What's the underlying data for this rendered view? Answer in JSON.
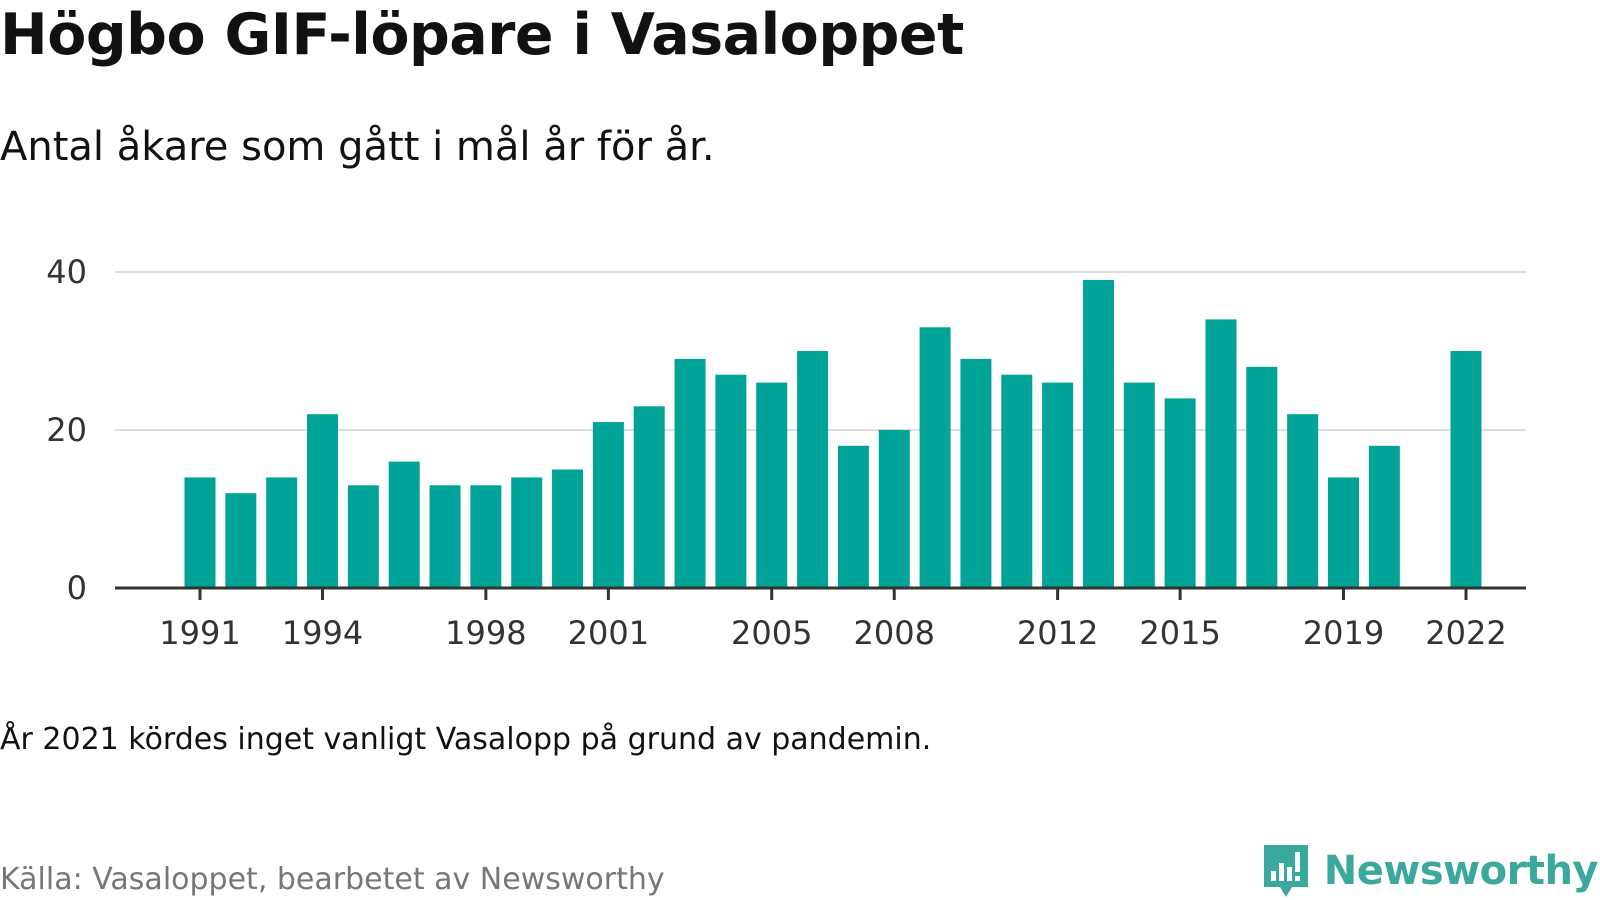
{
  "title": "Högbo GIF-löpare i Vasaloppet",
  "subtitle": "Antal åkare som gått i mål år för år.",
  "note": "År 2021 kördes inget vanligt Vasalopp på grund av pandemin.",
  "source": "Källa: Vasaloppet, bearbetet av Newsworthy",
  "brand": {
    "name": "Newsworthy",
    "icon": "newsworthy-logo-icon",
    "color": "#3aa89c"
  },
  "colors": {
    "bar": "#00a398",
    "grid": "#dddddd",
    "axis": "#333333"
  },
  "chart_data": {
    "type": "bar",
    "x": [
      1991,
      1992,
      1993,
      1994,
      1995,
      1996,
      1997,
      1998,
      1999,
      2000,
      2001,
      2002,
      2003,
      2004,
      2005,
      2006,
      2007,
      2008,
      2009,
      2010,
      2011,
      2012,
      2013,
      2014,
      2015,
      2016,
      2017,
      2018,
      2019,
      2020,
      2021,
      2022
    ],
    "values": [
      14,
      12,
      14,
      22,
      13,
      16,
      13,
      13,
      14,
      15,
      21,
      23,
      29,
      27,
      26,
      30,
      18,
      20,
      33,
      29,
      27,
      26,
      39,
      26,
      24,
      34,
      28,
      22,
      14,
      18,
      null,
      30
    ],
    "x_tick_labels": [
      "1991",
      "1994",
      "1998",
      "2001",
      "2005",
      "2008",
      "2012",
      "2015",
      "2019",
      "2022"
    ],
    "y_ticks": [
      0,
      20,
      40
    ],
    "ylim": [
      0,
      40
    ],
    "xlabel": "",
    "ylabel": "",
    "grid": true,
    "legend": "none"
  }
}
